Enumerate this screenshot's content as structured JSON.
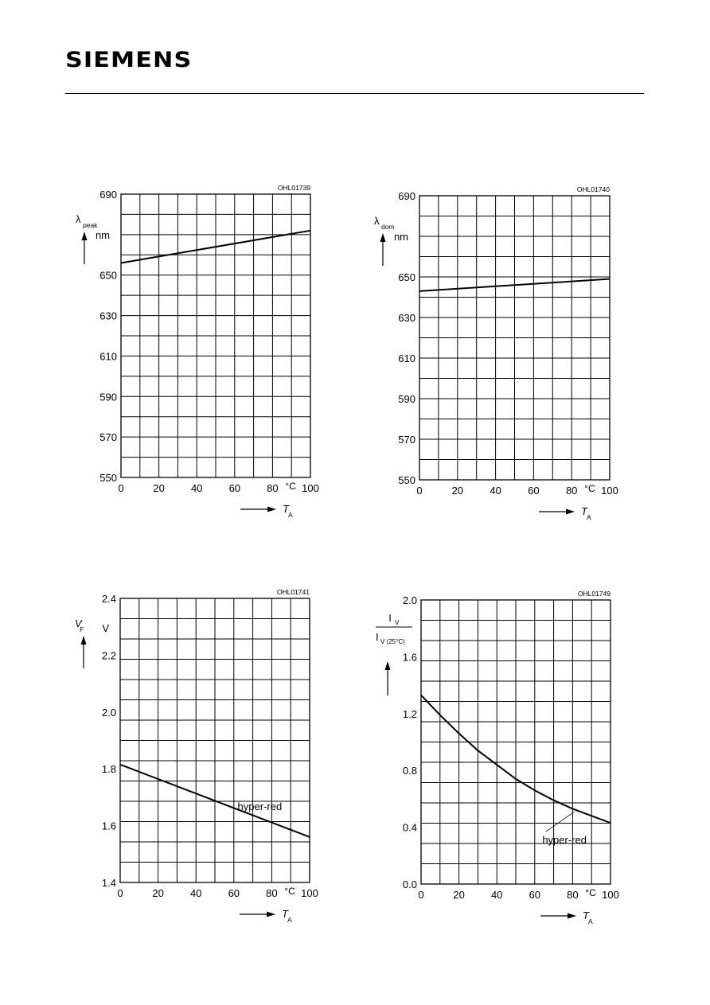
{
  "header": {
    "brand": "SIEMENS"
  },
  "chart_data": [
    {
      "type": "line",
      "code": "OHL01739",
      "ylabel_symbol": "λ",
      "ylabel_sub": "peak",
      "yunit": "nm",
      "xlabel_symbol": "T",
      "xlabel_sub": "A",
      "xunit": "°C",
      "xlim": [
        0,
        100
      ],
      "ylim": [
        550,
        690
      ],
      "xticks": [
        0,
        20,
        40,
        60,
        80,
        100
      ],
      "xtick_labels": [
        "0",
        "20",
        "40",
        "60",
        "80",
        "100"
      ],
      "yticks": [
        550,
        570,
        590,
        610,
        630,
        650,
        670,
        690
      ],
      "ytick_labels": [
        "550",
        "570",
        "590",
        "610",
        "630",
        "650",
        "",
        "690"
      ],
      "grid": true,
      "series": [
        {
          "x": [
            0,
            100
          ],
          "y": [
            656,
            672
          ]
        }
      ]
    },
    {
      "type": "line",
      "code": "OHL01740",
      "ylabel_symbol": "λ",
      "ylabel_sub": "dom",
      "yunit": "nm",
      "xlabel_symbol": "T",
      "xlabel_sub": "A",
      "xunit": "°C",
      "xlim": [
        0,
        100
      ],
      "ylim": [
        550,
        690
      ],
      "xticks": [
        0,
        20,
        40,
        60,
        80,
        100
      ],
      "xtick_labels": [
        "0",
        "20",
        "40",
        "60",
        "80",
        "100"
      ],
      "yticks": [
        550,
        570,
        590,
        610,
        630,
        650,
        670,
        690
      ],
      "ytick_labels": [
        "550",
        "570",
        "590",
        "610",
        "630",
        "650",
        "",
        "690"
      ],
      "grid": true,
      "series": [
        {
          "x": [
            0,
            100
          ],
          "y": [
            643,
            649
          ]
        }
      ]
    },
    {
      "type": "line",
      "code": "OHL01741",
      "ylabel_symbol": "V",
      "ylabel_sub": "F",
      "yunit": "V",
      "xlabel_symbol": "T",
      "xlabel_sub": "A",
      "xunit": "°C",
      "xlim": [
        0,
        100
      ],
      "ylim": [
        1.4,
        2.4
      ],
      "xticks": [
        0,
        20,
        40,
        60,
        80,
        100
      ],
      "xtick_labels": [
        "0",
        "20",
        "40",
        "60",
        "80",
        "100"
      ],
      "yticks": [
        1.4,
        1.6,
        1.8,
        2.0,
        2.2,
        2.4
      ],
      "ytick_labels": [
        "1.4",
        "1.6",
        "1.8",
        "2.0",
        "2.2",
        "2.4"
      ],
      "grid": true,
      "series": [
        {
          "name": "hyper-red",
          "x": [
            0,
            100
          ],
          "y": [
            1.815,
            1.56
          ]
        }
      ]
    },
    {
      "type": "line",
      "code": "OHL01749",
      "ylabel_num": "I",
      "ylabel_num_sub": "V",
      "ylabel_den": "I",
      "ylabel_den_sub": "V (25°C)",
      "xlabel_symbol": "T",
      "xlabel_sub": "A",
      "xunit": "°C",
      "xlim": [
        0,
        100
      ],
      "ylim": [
        0.0,
        2.0
      ],
      "xticks": [
        0,
        20,
        40,
        60,
        80,
        100
      ],
      "xtick_labels": [
        "0",
        "20",
        "40",
        "60",
        "80",
        "100"
      ],
      "yticks": [
        0.0,
        0.4,
        0.8,
        1.2,
        1.6,
        2.0
      ],
      "ytick_labels": [
        "0.0",
        "0.4",
        "0.8",
        "1.2",
        "1.6",
        "2.0"
      ],
      "grid": true,
      "series": [
        {
          "name": "hyper-red",
          "x": [
            0,
            10,
            20,
            30,
            40,
            50,
            60,
            70,
            80,
            90,
            100
          ],
          "y": [
            1.33,
            1.19,
            1.06,
            0.94,
            0.84,
            0.74,
            0.66,
            0.59,
            0.53,
            0.48,
            0.43
          ]
        }
      ]
    }
  ]
}
